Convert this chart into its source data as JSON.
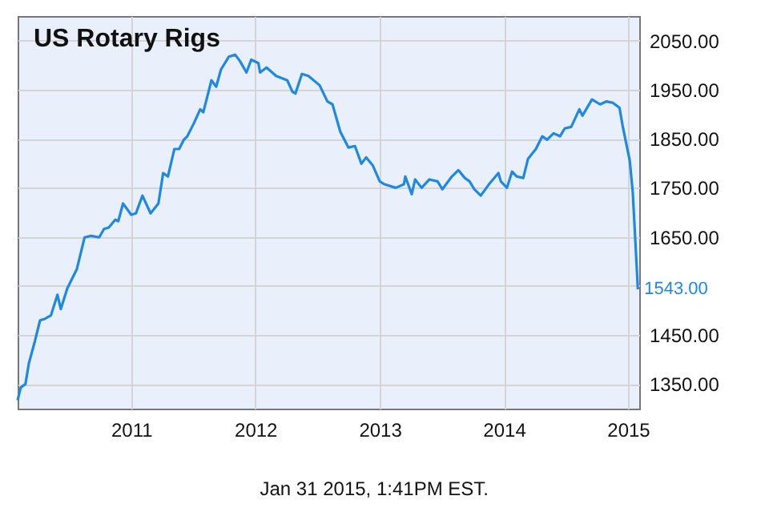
{
  "chart_data": {
    "type": "line",
    "title": "US Rotary Rigs",
    "x": [
      "2010-02-01",
      "2010-02-10",
      "2010-02-24",
      "2010-03-06",
      "2010-03-24",
      "2010-04-08",
      "2010-04-22",
      "2010-05-10",
      "2010-05-29",
      "2010-06-08",
      "2010-06-27",
      "2010-07-25",
      "2010-08-17",
      "2010-09-05",
      "2010-09-29",
      "2010-10-13",
      "2010-10-27",
      "2010-11-15",
      "2010-11-24",
      "2010-12-08",
      "2011-01-01",
      "2011-01-15",
      "2011-02-03",
      "2011-02-27",
      "2011-03-22",
      "2011-04-05",
      "2011-04-19",
      "2011-05-08",
      "2011-05-22",
      "2011-06-05",
      "2011-06-15",
      "2011-07-04",
      "2011-07-23",
      "2011-08-01",
      "2011-08-25",
      "2011-09-08",
      "2011-09-22",
      "2011-10-15",
      "2011-11-03",
      "2011-11-17",
      "2011-12-06",
      "2011-12-20",
      "2012-01-10",
      "2012-01-15",
      "2012-02-03",
      "2012-03-02",
      "2012-04-04",
      "2012-04-19",
      "2012-04-28",
      "2012-05-17",
      "2012-06-05",
      "2012-07-08",
      "2012-07-31",
      "2012-08-15",
      "2012-09-07",
      "2012-10-01",
      "2012-10-20",
      "2012-11-08",
      "2012-11-22",
      "2012-12-11",
      "2013-01-01",
      "2013-01-15",
      "2013-02-17",
      "2013-03-13",
      "2013-03-17",
      "2013-04-05",
      "2013-04-15",
      "2013-05-04",
      "2013-05-27",
      "2013-06-20",
      "2013-07-04",
      "2013-08-01",
      "2013-08-20",
      "2013-09-08",
      "2013-09-22",
      "2013-10-06",
      "2013-10-25",
      "2013-11-18",
      "2013-12-16",
      "2013-12-23",
      "2014-01-10",
      "2014-01-25",
      "2014-02-08",
      "2014-02-27",
      "2014-03-13",
      "2014-04-05",
      "2014-04-24",
      "2014-05-08",
      "2014-05-27",
      "2014-06-15",
      "2014-06-29",
      "2014-07-18",
      "2014-08-11",
      "2014-08-20",
      "2014-09-17",
      "2014-10-11",
      "2014-10-30",
      "2014-11-18",
      "2014-12-07",
      "2014-12-16",
      "2015-01-06",
      "2015-01-15",
      "2015-01-30"
    ],
    "series": [
      {
        "color": "#1e88e5",
        "values": [
          1317,
          1343,
          1350,
          1392,
          1438,
          1480,
          1483,
          1490,
          1532,
          1503,
          1545,
          1584,
          1649,
          1652,
          1649,
          1666,
          1669,
          1685,
          1682,
          1718,
          1695,
          1698,
          1734,
          1698,
          1718,
          1780,
          1773,
          1829,
          1829,
          1848,
          1855,
          1881,
          1910,
          1904,
          1969,
          1956,
          1991,
          2017,
          2021,
          2008,
          1985,
          2011,
          2004,
          1985,
          1995,
          1978,
          1969,
          1946,
          1942,
          1982,
          1978,
          1959,
          1926,
          1920,
          1864,
          1832,
          1835,
          1799,
          1812,
          1796,
          1763,
          1757,
          1750,
          1757,
          1773,
          1737,
          1767,
          1750,
          1767,
          1763,
          1747,
          1773,
          1786,
          1770,
          1763,
          1747,
          1734,
          1757,
          1780,
          1763,
          1750,
          1783,
          1773,
          1770,
          1809,
          1829,
          1855,
          1848,
          1861,
          1855,
          1871,
          1874,
          1910,
          1897,
          1930,
          1920,
          1926,
          1923,
          1913,
          1877,
          1806,
          1741,
          1543
        ]
      }
    ],
    "xlim": [
      "2010-02-01",
      "2015-02-03"
    ],
    "xticks": [
      "2011",
      "2012",
      "2013",
      "2014",
      "2015"
    ],
    "ylim": [
      1300,
      2100
    ],
    "yticks": [
      {
        "value": 1350,
        "label": "1350.00"
      },
      {
        "value": 1450,
        "label": "1450.00"
      },
      {
        "value": 1550,
        "label": null
      },
      {
        "value": 1650,
        "label": "1650.00"
      },
      {
        "value": 1750,
        "label": "1750.00"
      },
      {
        "value": 1850,
        "label": "1850.00"
      },
      {
        "value": 1950,
        "label": "1950.00"
      },
      {
        "value": 2050,
        "label": "2050.00"
      }
    ],
    "grid": true,
    "annotations": [
      {
        "text": "1543.00",
        "x": "2015-01-30",
        "y": 1543
      },
      "Jan 31 2015, 1:41PM EST."
    ]
  }
}
